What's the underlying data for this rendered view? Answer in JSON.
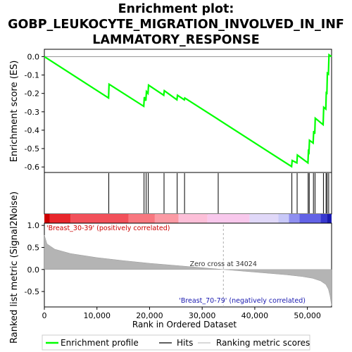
{
  "title_lines": [
    "Enrichment plot:",
    "GOBP_LEUKOCYTE_MIGRATION_INVOLVED_IN_INF",
    "LAMMATORY_RESPONSE"
  ],
  "chart_data": {
    "type": "line",
    "es_panel": {
      "ylabel": "Enrichment score (ES)",
      "ylim": [
        -0.63,
        0.04
      ],
      "yticks": [
        0.0,
        -0.1,
        -0.2,
        -0.3,
        -0.4,
        -0.5,
        -0.6
      ],
      "ytick_labels": [
        "0.0",
        "-0.1",
        "-0.2",
        "-0.3",
        "-0.4",
        "-0.5",
        "-0.6"
      ],
      "line_color": "#00ff00",
      "series": [
        {
          "name": "Enrichment profile",
          "x": [
            0,
            12200,
            12300,
            18900,
            19000,
            19300,
            19400,
            19700,
            19800,
            22700,
            22800,
            25200,
            25300,
            26600,
            26700,
            33000,
            33100,
            47000,
            47100,
            48000,
            48100,
            50100,
            50200,
            50300,
            50400,
            51100,
            51200,
            51400,
            51500,
            53000,
            53100,
            53500,
            53600,
            53700,
            53800,
            54000,
            54100,
            54600
          ],
          "y": [
            0.0,
            -0.225,
            -0.15,
            -0.27,
            -0.22,
            -0.24,
            -0.19,
            -0.2,
            -0.155,
            -0.21,
            -0.185,
            -0.235,
            -0.21,
            -0.235,
            -0.225,
            -0.34,
            -0.342,
            -0.598,
            -0.565,
            -0.578,
            -0.535,
            -0.578,
            -0.515,
            -0.52,
            -0.455,
            -0.47,
            -0.405,
            -0.42,
            -0.335,
            -0.37,
            -0.275,
            -0.285,
            -0.19,
            -0.205,
            -0.09,
            -0.095,
            0.01,
            0.0
          ]
        }
      ]
    },
    "hits": [
      12250,
      18950,
      19350,
      19750,
      22750,
      25250,
      26650,
      33050,
      47050,
      48050,
      50150,
      50350,
      51150,
      51450,
      53050,
      53550,
      53750,
      54050
    ],
    "metric_panel": {
      "ylabel": "Ranked list metric (Signal2Noise)",
      "ylim": [
        -0.85,
        1.05
      ],
      "yticks": [
        1.0,
        0.5,
        0.0,
        -0.5
      ],
      "ytick_labels": [
        "1.0",
        "0.5",
        "0.0",
        "-0.5"
      ],
      "profile_x": [
        0,
        500,
        2000,
        5000,
        10000,
        15000,
        20000,
        25000,
        30000,
        34024,
        38000,
        42000,
        46000,
        49000,
        51000,
        52500,
        53500,
        54000,
        54300,
        54600
      ],
      "profile_y": [
        0.78,
        0.58,
        0.46,
        0.36,
        0.27,
        0.2,
        0.14,
        0.09,
        0.04,
        0.0,
        -0.04,
        -0.08,
        -0.12,
        -0.16,
        -0.2,
        -0.26,
        -0.34,
        -0.45,
        -0.6,
        -0.82
      ],
      "zero_cross_label": "Zero cross at 34024",
      "pos_label": "'Breast_30-39' (positively correlated)",
      "neg_label": "'Breast_70-79' (negatively correlated)"
    },
    "xlabel": "Rank in Ordered Dataset",
    "xlim": [
      0,
      54600
    ],
    "xticks": [
      0,
      10000,
      20000,
      30000,
      40000,
      50000
    ],
    "xtick_labels": [
      "0",
      "10,000",
      "20,000",
      "30,000",
      "40,000",
      "50,000"
    ],
    "colorbar": [
      {
        "from": 0,
        "to": 1000,
        "color": "#cc0000"
      },
      {
        "from": 1000,
        "to": 5000,
        "color": "#e8262c"
      },
      {
        "from": 5000,
        "to": 16000,
        "color": "#f2505a"
      },
      {
        "from": 16000,
        "to": 21000,
        "color": "#f8777f"
      },
      {
        "from": 21000,
        "to": 25500,
        "color": "#fb9aa4"
      },
      {
        "from": 25500,
        "to": 31000,
        "color": "#fcbfd8"
      },
      {
        "from": 31000,
        "to": 39000,
        "color": "#f8c8ec"
      },
      {
        "from": 39000,
        "to": 44500,
        "color": "#e0d8f8"
      },
      {
        "from": 44500,
        "to": 46500,
        "color": "#c8c8f8"
      },
      {
        "from": 46500,
        "to": 48500,
        "color": "#8f8ff0"
      },
      {
        "from": 48500,
        "to": 52500,
        "color": "#6262e6"
      },
      {
        "from": 52500,
        "to": 53700,
        "color": "#3838d0"
      },
      {
        "from": 53700,
        "to": 54600,
        "color": "#1a1ab0"
      }
    ],
    "legend": [
      {
        "label": "Enrichment profile",
        "color": "#00ff00"
      },
      {
        "label": "Hits",
        "color": "#000000"
      },
      {
        "label": "Ranking metric scores",
        "color": "#c0c0c0"
      }
    ],
    "legend_position": "bottom"
  }
}
